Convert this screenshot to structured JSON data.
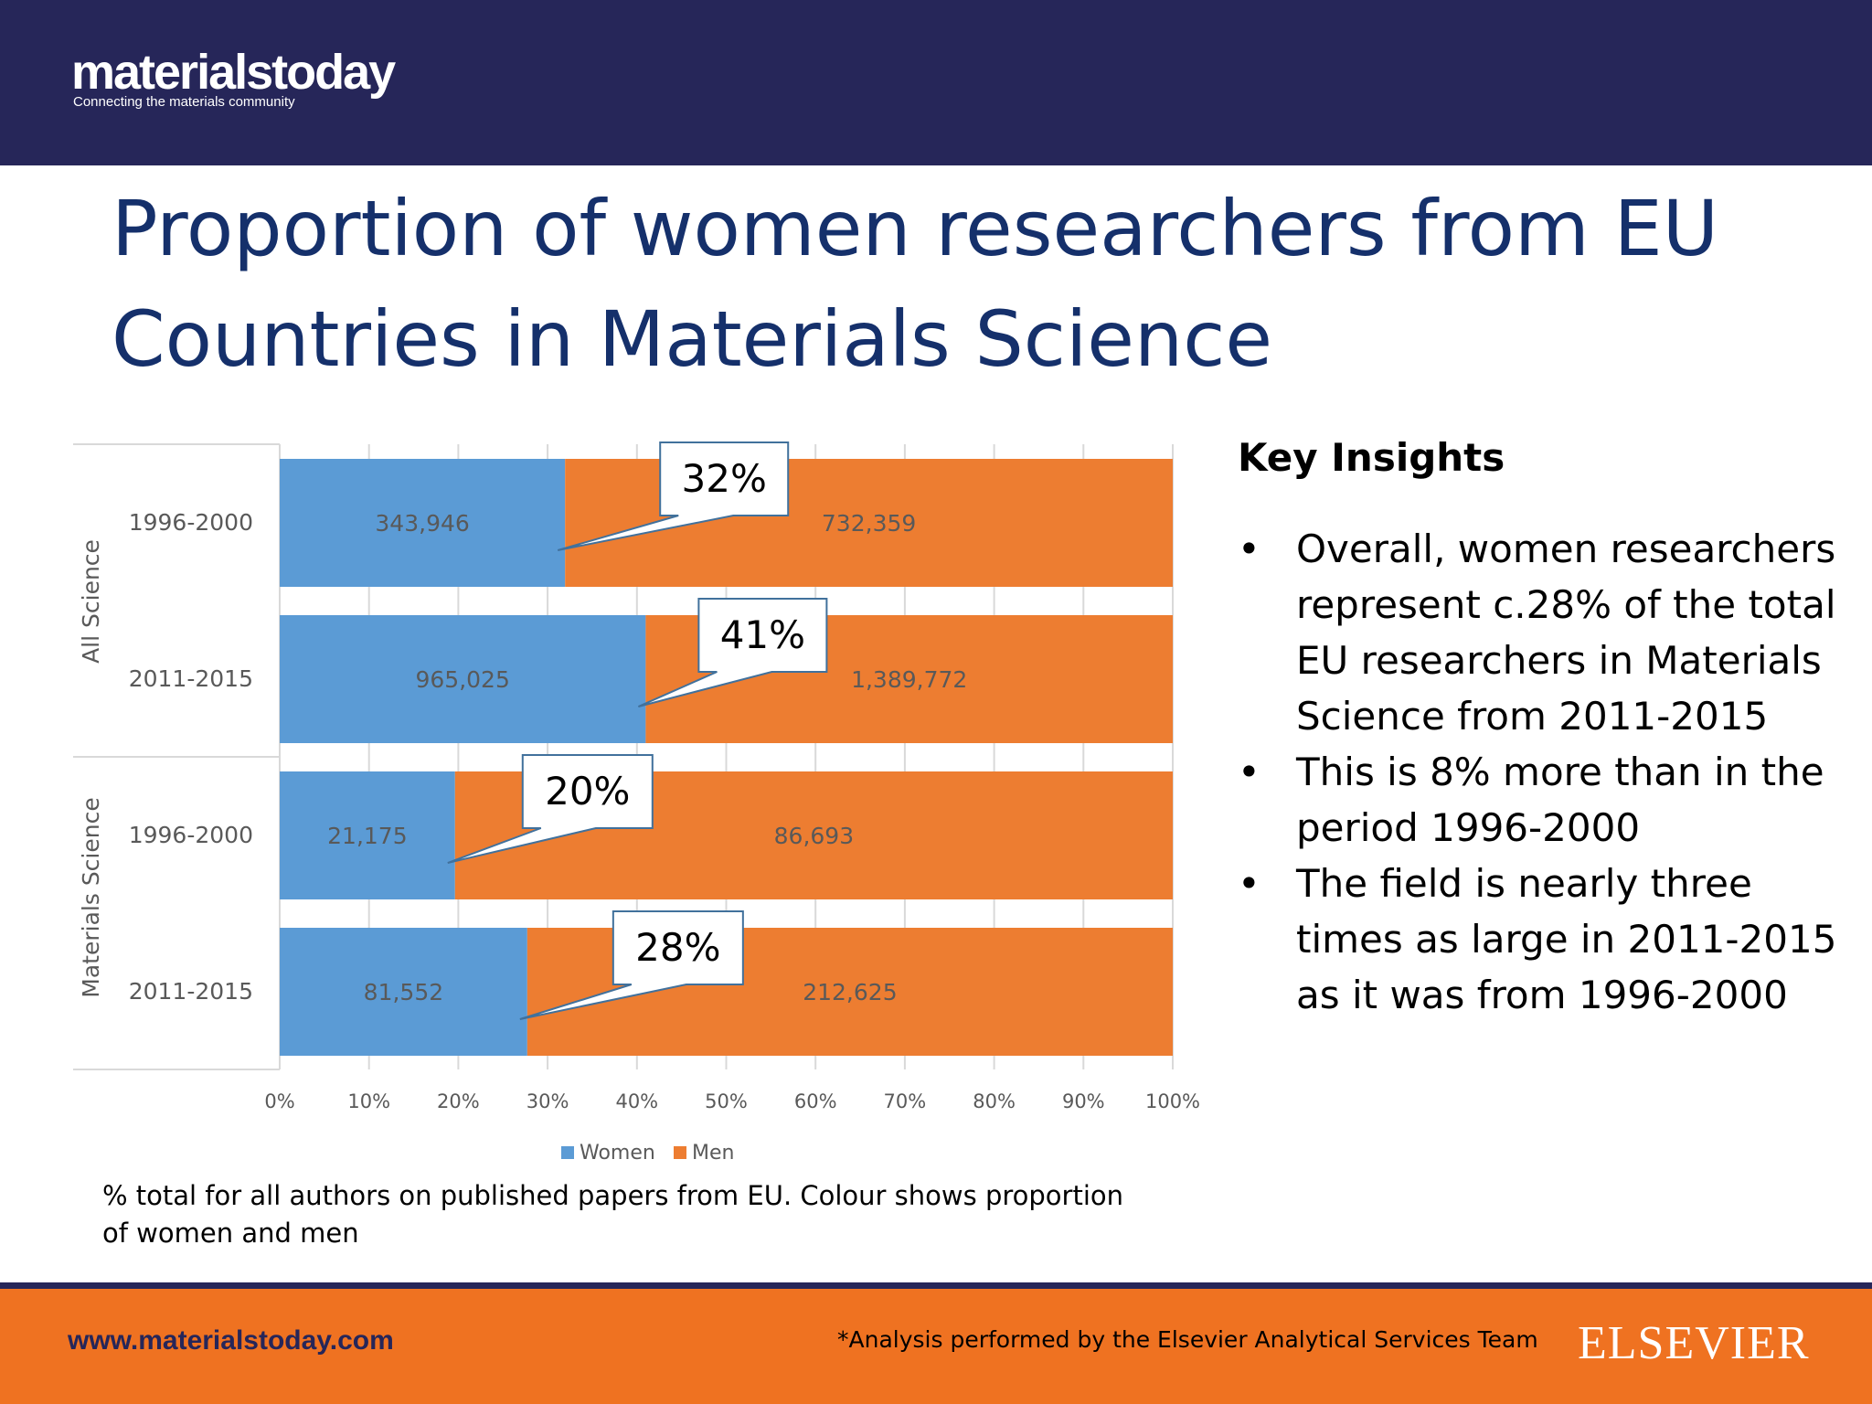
{
  "header": {
    "logo_text": "materialstoday",
    "logo_tagline": "Connecting the materials community"
  },
  "title": "Proportion of women researchers from EU Countries in Materials Science",
  "colors": {
    "women": "#5b9bd5",
    "men": "#ed7d31",
    "header": "#262659",
    "footer": "#ef7221",
    "title": "#15306b"
  },
  "chart_data": {
    "type": "bar",
    "orientation": "horizontal",
    "stacking": "percent",
    "groups": [
      {
        "name": "All Science",
        "rows": [
          {
            "period": "1996-2000",
            "women": 343946,
            "men": 732359,
            "women_label": "343,946",
            "men_label": "732,359",
            "callout": "32%"
          },
          {
            "period": "2011-2015",
            "women": 965025,
            "men": 1389772,
            "women_label": "965,025",
            "men_label": "1,389,772",
            "callout": "41%"
          }
        ]
      },
      {
        "name": "Materials Science",
        "rows": [
          {
            "period": "1996-2000",
            "women": 21175,
            "men": 86693,
            "women_label": "21,175",
            "men_label": "86,693",
            "callout": "20%"
          },
          {
            "period": "2011-2015",
            "women": 81552,
            "men": 212625,
            "women_label": "81,552",
            "men_label": "212,625",
            "callout": "28%"
          }
        ]
      }
    ],
    "series": [
      {
        "name": "Women"
      },
      {
        "name": "Men"
      }
    ],
    "xticks": [
      "0%",
      "10%",
      "20%",
      "30%",
      "40%",
      "50%",
      "60%",
      "70%",
      "80%",
      "90%",
      "100%"
    ],
    "xlim": [
      0,
      100
    ],
    "grid": true,
    "legend_position": "bottom"
  },
  "caption": "% total for all authors on published papers from EU. Colour shows proportion of women and men",
  "insights": {
    "title": "Key Insights",
    "bullet": "•",
    "items": [
      "Overall, women researchers represent c.28% of the total EU researchers in Materials Science from 2011-2015",
      "This is 8% more than in the period 1996-2000",
      "The field is nearly three times as large in 2011-2015 as it was from 1996-2000"
    ]
  },
  "footer": {
    "url": "www.materialstoday.com",
    "note": "*Analysis performed by the Elsevier Analytical Services Team",
    "brand": "ELSEVIER"
  }
}
